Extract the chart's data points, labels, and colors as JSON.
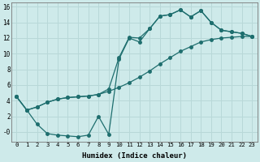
{
  "xlabel": "Humidex (Indice chaleur)",
  "bg_color": "#ceeaea",
  "grid_color": "#b8d8d8",
  "line_color": "#1e6e6e",
  "xlim": [
    -0.5,
    23.5
  ],
  "ylim": [
    -1.2,
    16.5
  ],
  "xticks": [
    0,
    1,
    2,
    3,
    4,
    5,
    6,
    7,
    8,
    9,
    10,
    11,
    12,
    13,
    14,
    15,
    16,
    17,
    18,
    19,
    20,
    21,
    22,
    23
  ],
  "yticks": [
    0,
    2,
    4,
    6,
    8,
    10,
    12,
    14,
    16
  ],
  "ytick_labels": [
    "-0",
    "2",
    "4",
    "6",
    "8",
    "10",
    "12",
    "14",
    "16"
  ],
  "line1_x": [
    0,
    1,
    2,
    3,
    4,
    5,
    6,
    7,
    8,
    9,
    10,
    11,
    12,
    13,
    14,
    15,
    16,
    17,
    18,
    19,
    20,
    21,
    22,
    23
  ],
  "line1_y": [
    4.5,
    2.8,
    1.0,
    -0.2,
    -0.4,
    -0.5,
    -0.6,
    -0.4,
    2.0,
    -0.3,
    9.3,
    12.0,
    11.5,
    13.2,
    14.8,
    15.0,
    15.6,
    14.7,
    15.5,
    14.0,
    13.0,
    12.8,
    12.6,
    12.2
  ],
  "line2_x": [
    0,
    1,
    2,
    3,
    4,
    5,
    6,
    7,
    8,
    9,
    10,
    11,
    12,
    13,
    14,
    15,
    16,
    17,
    18,
    19,
    20,
    21,
    22,
    23
  ],
  "line2_y": [
    4.5,
    2.8,
    3.2,
    3.8,
    4.2,
    4.4,
    4.5,
    4.6,
    4.8,
    5.5,
    9.5,
    12.1,
    12.0,
    13.2,
    14.8,
    15.0,
    15.6,
    14.7,
    15.5,
    14.0,
    13.0,
    12.8,
    12.6,
    12.2
  ],
  "line3_x": [
    0,
    1,
    2,
    3,
    4,
    5,
    6,
    7,
    8,
    9,
    10,
    11,
    12,
    13,
    14,
    15,
    16,
    17,
    18,
    19,
    20,
    21,
    22,
    23
  ],
  "line3_y": [
    4.5,
    2.8,
    3.2,
    3.8,
    4.2,
    4.4,
    4.5,
    4.6,
    4.8,
    5.2,
    5.7,
    6.3,
    7.0,
    7.8,
    8.7,
    9.5,
    10.3,
    10.9,
    11.5,
    11.8,
    12.0,
    12.1,
    12.2,
    12.2
  ]
}
